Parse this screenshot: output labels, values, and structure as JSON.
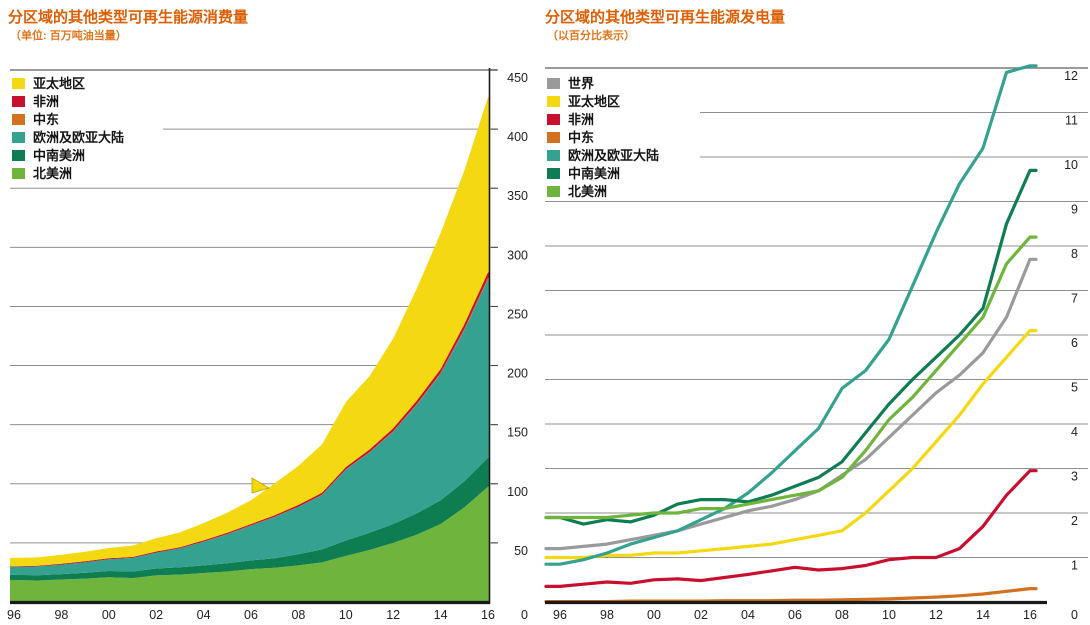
{
  "colors": {
    "title": "#dd5f05",
    "grid": "#8f8f8f",
    "grid_top": "#7a7a7a",
    "axis": "#1a1a1a",
    "tick_text": "#222222",
    "background": "#ffffff"
  },
  "chart_data": [
    {
      "type": "area",
      "title": "分区域的其他类型可再生能源消费量",
      "subtitle": "（单位: 百万吨油当量）",
      "unit": "百万吨油当量",
      "legend_position": "top-left",
      "grid": true,
      "years": [
        1996,
        1997,
        1998,
        1999,
        2000,
        2001,
        2002,
        2003,
        2004,
        2005,
        2006,
        2007,
        2008,
        2009,
        2010,
        2011,
        2012,
        2013,
        2014,
        2015,
        2016
      ],
      "x_tick_labels": [
        "96",
        "98",
        "00",
        "02",
        "04",
        "06",
        "08",
        "10",
        "12",
        "14",
        "16"
      ],
      "ylim": [
        0,
        450
      ],
      "yticks": [
        0,
        50,
        100,
        150,
        200,
        250,
        300,
        350,
        400,
        450
      ],
      "y_zero_label": "0",
      "stack_order": [
        "north_america",
        "s_c_america",
        "europe_eurasia",
        "middle_east",
        "africa",
        "asia_pacific"
      ],
      "series": [
        {
          "key": "asia_pacific",
          "label": "亚太地区",
          "color": "#f4d812",
          "values": [
            7,
            7,
            7.6,
            8.1,
            8.7,
            9.6,
            11.2,
            12.6,
            14.6,
            17.1,
            20,
            27,
            33,
            41,
            55,
            62,
            76,
            95,
            115,
            130,
            148
          ]
        },
        {
          "key": "africa",
          "label": "非洲",
          "color": "#c8102e",
          "values": [
            0.6,
            0.6,
            0.7,
            0.7,
            0.8,
            0.8,
            0.9,
            0.9,
            1,
            1.1,
            1.2,
            1.3,
            1.5,
            1.7,
            1.9,
            2.2,
            2.5,
            2.9,
            3.3,
            4,
            4.8
          ]
        },
        {
          "key": "middle_east",
          "label": "中东",
          "color": "#d2711f",
          "values": [
            0,
            0,
            0,
            0,
            0,
            0,
            0,
            0,
            0.1,
            0.1,
            0.1,
            0.1,
            0.1,
            0.2,
            0.2,
            0.3,
            0.4,
            0.5,
            0.7,
            0.9,
            1.1
          ]
        },
        {
          "key": "europe_eurasia",
          "label": "欧洲及欧亚大陆",
          "color": "#35a291",
          "values": [
            6.8,
            7.4,
            8,
            9,
            10,
            11.5,
            13.5,
            16,
            20,
            24.5,
            29.5,
            35,
            40,
            46,
            60,
            68,
            78,
            92,
            107,
            128,
            151
          ]
        },
        {
          "key": "s_c_america",
          "label": "中南美洲",
          "color": "#0f7d52",
          "values": [
            4.3,
            4.5,
            4.6,
            4.9,
            5.2,
            5.6,
            5.8,
            6.2,
            6.5,
            7,
            7.4,
            8,
            9.5,
            11,
            13,
            14.5,
            16,
            18,
            20,
            22,
            24.5
          ]
        },
        {
          "key": "north_america",
          "label": "北美洲",
          "color": "#6fb43c",
          "values": [
            18.6,
            18.2,
            19,
            19.8,
            21,
            20.2,
            22.5,
            23.2,
            24.5,
            25.8,
            27.8,
            29,
            31,
            33.5,
            39,
            44,
            50,
            57,
            66,
            80,
            97.5
          ]
        }
      ]
    },
    {
      "type": "line",
      "title": "分区域的其他类型可再生能源发电量",
      "subtitle": "（以百分比表示）",
      "unit": "%",
      "legend_position": "top-left",
      "grid": true,
      "years": [
        1996,
        1997,
        1998,
        1999,
        2000,
        2001,
        2002,
        2003,
        2004,
        2005,
        2006,
        2007,
        2008,
        2009,
        2010,
        2011,
        2012,
        2013,
        2014,
        2015,
        2016
      ],
      "x_tick_labels": [
        "96",
        "98",
        "00",
        "02",
        "04",
        "06",
        "08",
        "10",
        "12",
        "14",
        "16"
      ],
      "ylim": [
        0,
        12
      ],
      "yticks": [
        0,
        1,
        2,
        3,
        4,
        5,
        6,
        7,
        8,
        9,
        10,
        11,
        12
      ],
      "y_zero_label": "0",
      "series": [
        {
          "key": "world",
          "label": "世界",
          "color": "#9a9a9a",
          "values": [
            1.2,
            1.25,
            1.3,
            1.4,
            1.5,
            1.6,
            1.75,
            1.9,
            2.05,
            2.15,
            2.3,
            2.5,
            2.85,
            3.2,
            3.7,
            4.2,
            4.7,
            5.1,
            5.6,
            6.4,
            7.7
          ]
        },
        {
          "key": "asia_pacific",
          "label": "亚太地区",
          "color": "#f4d812",
          "values": [
            1,
            1,
            1.05,
            1.05,
            1.1,
            1.1,
            1.15,
            1.2,
            1.25,
            1.3,
            1.4,
            1.5,
            1.6,
            2,
            2.5,
            3,
            3.6,
            4.2,
            4.9,
            5.5,
            6.1
          ]
        },
        {
          "key": "africa",
          "label": "非洲",
          "color": "#c8102e",
          "values": [
            0.35,
            0.4,
            0.45,
            0.42,
            0.5,
            0.52,
            0.48,
            0.55,
            0.62,
            0.7,
            0.78,
            0.72,
            0.75,
            0.82,
            0.95,
            1,
            1,
            1.2,
            1.7,
            2.4,
            2.95
          ]
        },
        {
          "key": "middle_east",
          "label": "中东",
          "color": "#d2711f",
          "values": [
            0.01,
            0.01,
            0.01,
            0.02,
            0.02,
            0.02,
            0.02,
            0.03,
            0.03,
            0.03,
            0.04,
            0.04,
            0.05,
            0.06,
            0.07,
            0.09,
            0.11,
            0.14,
            0.18,
            0.24,
            0.3
          ]
        },
        {
          "key": "europe_eurasia",
          "label": "欧洲及欧亚大陆",
          "color": "#35a291",
          "values": [
            0.85,
            0.95,
            1.1,
            1.3,
            1.45,
            1.6,
            1.85,
            2.1,
            2.45,
            2.9,
            3.4,
            3.9,
            4.8,
            5.2,
            5.9,
            7.1,
            8.3,
            9.4,
            10.2,
            11.9,
            12.05
          ]
        },
        {
          "key": "s_c_america",
          "label": "中南美洲",
          "color": "#0f7d52",
          "values": [
            1.9,
            1.75,
            1.85,
            1.8,
            1.95,
            2.2,
            2.3,
            2.3,
            2.25,
            2.4,
            2.6,
            2.8,
            3.15,
            3.8,
            4.45,
            5,
            5.5,
            6,
            6.6,
            8.5,
            9.7
          ]
        },
        {
          "key": "north_america",
          "label": "北美洲",
          "color": "#6fb43c",
          "values": [
            1.9,
            1.9,
            1.9,
            1.95,
            2,
            2,
            2.1,
            2.1,
            2.2,
            2.3,
            2.4,
            2.5,
            2.8,
            3.4,
            4.1,
            4.6,
            5.2,
            5.8,
            6.4,
            7.6,
            8.2
          ]
        }
      ]
    }
  ]
}
